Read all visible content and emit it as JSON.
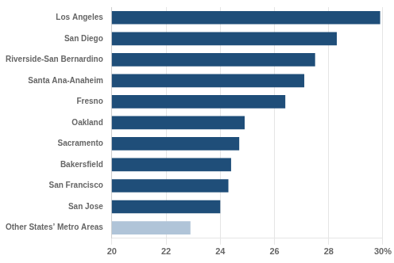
{
  "chart_data": {
    "type": "bar",
    "orientation": "horizontal",
    "categories": [
      "Los Angeles",
      "San Diego",
      "Riverside-San Bernardino",
      "Santa Ana-Anaheim",
      "Fresno",
      "Oakland",
      "Sacramento",
      "Bakersfield",
      "San Francisco",
      "San Jose",
      "Other States’ Metro Areas"
    ],
    "values": [
      29.9,
      28.3,
      27.5,
      27.1,
      26.4,
      24.9,
      24.7,
      24.4,
      24.3,
      24.0,
      22.9
    ],
    "colors": [
      "#1F4E79",
      "#1F4E79",
      "#1F4E79",
      "#1F4E79",
      "#1F4E79",
      "#1F4E79",
      "#1F4E79",
      "#1F4E79",
      "#1F4E79",
      "#1F4E79",
      "#B0C4D8"
    ],
    "xlim": [
      20,
      30
    ],
    "xticks": [
      20,
      22,
      24,
      26,
      28,
      {
        "value": 30,
        "label": "30%"
      }
    ],
    "grid": true
  }
}
